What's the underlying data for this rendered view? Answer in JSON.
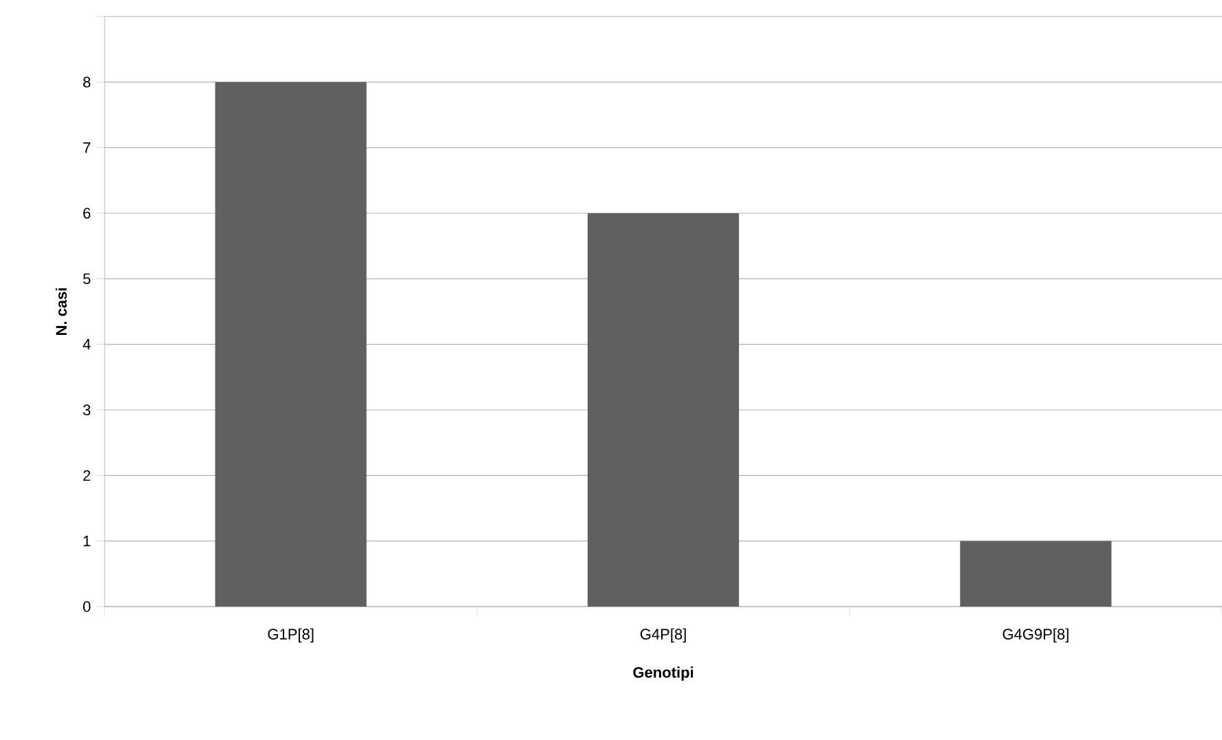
{
  "chart_data": {
    "type": "bar",
    "xlabel": "Genotipi",
    "ylabel": "N. casi",
    "categories": [
      "G1P[8]",
      "G4P[8]",
      "G4G9P[8]"
    ],
    "values": [
      8,
      6,
      1
    ],
    "color": "#606060",
    "ylim": [
      0,
      9
    ],
    "yticks": [
      0,
      1,
      2,
      3,
      4,
      5,
      6,
      7,
      8,
      {
        "value": 9,
        "label": null
      }
    ],
    "grid": "y"
  }
}
